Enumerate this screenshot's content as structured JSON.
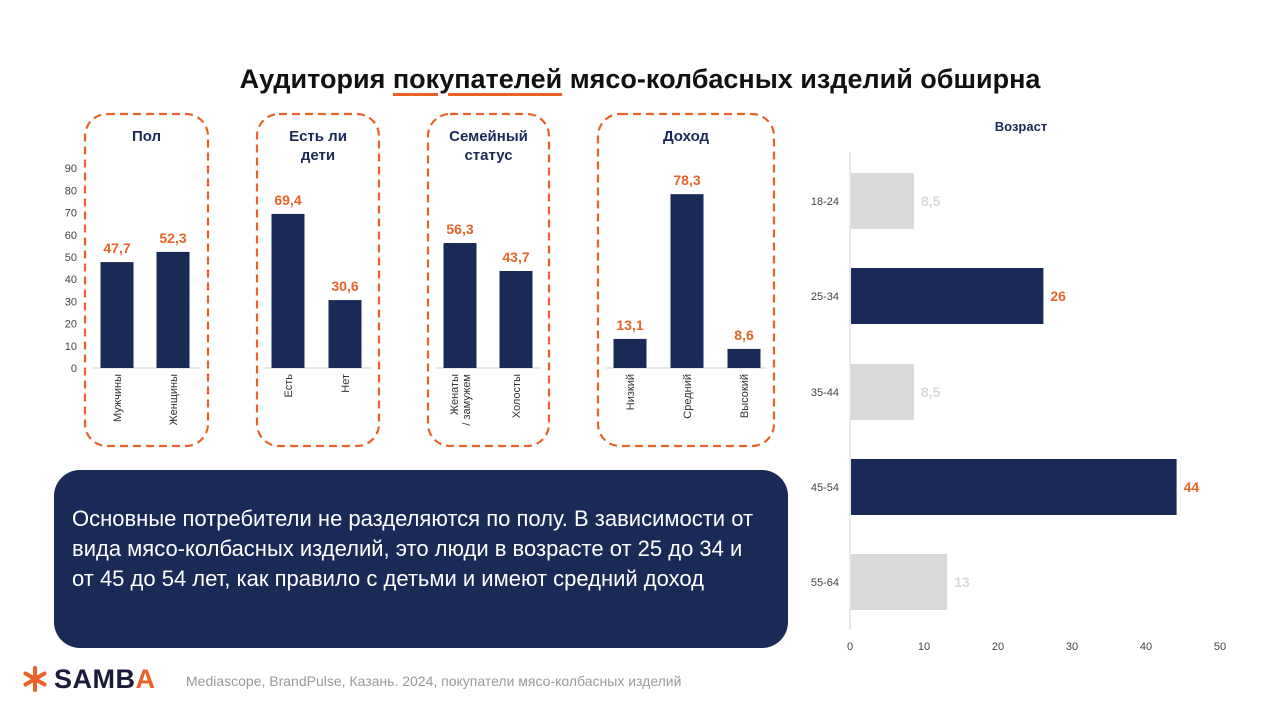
{
  "title": {
    "pre": "Аудитория ",
    "highlight": "покупателей",
    "post": " мясо-колбасных изделий обширна"
  },
  "summary": "Основные потребители не разделяются по полу. В зависимости от вида мясо-колбасных изделий, это люди в возрасте от 25 до 34 и от 45 до 54 лет, как правило с детьми и имеют средний доход",
  "footer": {
    "brand_main": "SAMB",
    "brand_accent": "A",
    "source": "Mediascope, BrandPulse, Казань. 2024, покупатели мясо-колбасных изделий"
  },
  "colors": {
    "navy": "#1a2a57",
    "orange": "#e8622a",
    "light_gray": "#d9d9d9",
    "axis_text": "#444444"
  },
  "chart_data": [
    {
      "type": "bar",
      "ylim": [
        0,
        90
      ],
      "yticks": [
        0,
        10,
        20,
        30,
        40,
        50,
        60,
        70,
        80,
        90
      ],
      "groups": [
        {
          "title": [
            "Пол"
          ],
          "categories": [
            "Мужчины",
            "Женщины"
          ],
          "values": [
            47.7,
            52.3
          ],
          "labels": [
            "47,7",
            "52,3"
          ]
        },
        {
          "title": [
            "Есть ли",
            "дети"
          ],
          "categories": [
            "Есть",
            "Нет"
          ],
          "values": [
            69.4,
            30.6
          ],
          "labels": [
            "69,4",
            "30,6"
          ]
        },
        {
          "title": [
            "Семейный",
            "статус"
          ],
          "categories": [
            "Женаты / замужем",
            "Холосты"
          ],
          "values": [
            56.3,
            43.7
          ],
          "labels": [
            "56,3",
            "43,7"
          ]
        },
        {
          "title": [
            "Доход"
          ],
          "categories": [
            "Низкий",
            "Средний",
            "Высокий"
          ],
          "values": [
            13.1,
            78.3,
            8.6
          ],
          "labels": [
            "13,1",
            "78,3",
            "8,6"
          ]
        }
      ]
    },
    {
      "type": "bar",
      "orientation": "horizontal",
      "title": "Возраст",
      "categories": [
        "18-24",
        "25-34",
        "35-44",
        "45-54",
        "55-64"
      ],
      "values": [
        8.5,
        26,
        8.5,
        44,
        13
      ],
      "labels": [
        "8,5",
        "26",
        "8,5",
        "44",
        "13"
      ],
      "highlighted": [
        false,
        true,
        false,
        true,
        false
      ],
      "xlim": [
        0,
        50
      ],
      "xticks": [
        0,
        10,
        20,
        30,
        40,
        50
      ]
    }
  ]
}
